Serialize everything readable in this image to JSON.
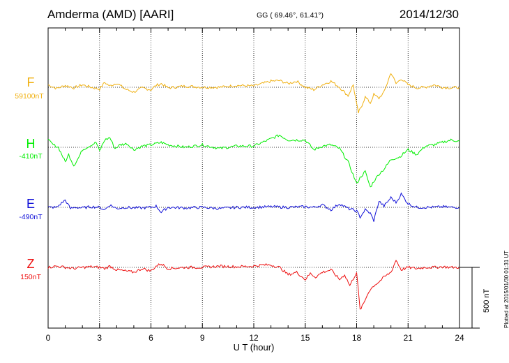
{
  "header": {
    "station": "Amderma (AMD)  [AARI]",
    "coords": "GG ( 69.46°,  61.41°)",
    "date": "2014/12/30"
  },
  "footer": {
    "plotted": "Plotted at 2015/01/30 01:31  UT"
  },
  "colors": {
    "F": "#f0b010",
    "H": "#00ee00",
    "E": "#1010d8",
    "Z": "#ee1010"
  },
  "chart_data": {
    "type": "line",
    "title": "",
    "xlabel": "U T (hour)",
    "ylabel": "",
    "xlim": [
      0,
      24
    ],
    "xticks": [
      "0",
      "3",
      "6",
      "9",
      "12",
      "15",
      "18",
      "21",
      "24"
    ],
    "grid": "dotted vertical every 3 hours; dotted baseline per component",
    "scale_bar": "500 nT",
    "series": [
      {
        "name": "F",
        "baseline_label": "59100nT",
        "x": [
          0,
          0.5,
          1,
          1.5,
          2,
          2.5,
          3,
          3.3,
          3.6,
          4,
          4.5,
          5,
          5.5,
          6,
          6.3,
          6.6,
          7,
          8,
          9,
          10,
          11,
          12,
          13,
          13.5,
          14,
          14.5,
          15,
          15.5,
          16,
          16.5,
          17,
          17.5,
          17.8,
          18,
          18.1,
          18.2,
          18.3,
          18.5,
          18.8,
          19,
          19.3,
          19.6,
          19.8,
          20,
          20.3,
          20.6,
          21,
          21.5,
          22,
          22.5,
          23,
          23.5,
          24
        ],
        "values": [
          20,
          -10,
          15,
          -5,
          20,
          0,
          -15,
          40,
          10,
          35,
          -15,
          -40,
          -5,
          -20,
          15,
          30,
          -5,
          10,
          0,
          0,
          15,
          10,
          50,
          55,
          30,
          50,
          0,
          -20,
          20,
          50,
          0,
          -70,
          20,
          -140,
          -210,
          -180,
          -150,
          -80,
          -130,
          -60,
          -90,
          -40,
          40,
          120,
          30,
          70,
          20,
          -5,
          0,
          20,
          0,
          -5,
          0
        ]
      },
      {
        "name": "H",
        "baseline_label": "-410nT",
        "x": [
          0,
          0.3,
          0.6,
          1,
          1.2,
          1.5,
          1.8,
          2,
          2.4,
          2.8,
          3,
          3.3,
          3.6,
          3.9,
          4.2,
          4.6,
          5,
          5.5,
          6,
          6.3,
          6.6,
          7,
          8,
          9,
          10,
          11,
          12,
          13,
          13.5,
          14,
          15,
          15.5,
          16,
          16.5,
          17,
          17.5,
          18,
          18.2,
          18.5,
          18.8,
          19,
          19.3,
          19.6,
          20,
          20.5,
          21,
          21.5,
          22,
          22.5,
          23,
          23.5,
          24
        ],
        "values": [
          60,
          20,
          0,
          -120,
          -60,
          -150,
          -80,
          -20,
          10,
          40,
          -30,
          60,
          80,
          -10,
          20,
          30,
          -20,
          10,
          20,
          30,
          40,
          20,
          0,
          20,
          -10,
          10,
          10,
          70,
          100,
          60,
          60,
          -20,
          10,
          20,
          -10,
          -120,
          -300,
          -250,
          -200,
          -330,
          -280,
          -220,
          -180,
          -100,
          -80,
          -20,
          -60,
          10,
          20,
          40,
          60,
          50
        ]
      },
      {
        "name": "E",
        "baseline_label": "-490nT",
        "x": [
          0,
          0.5,
          1,
          1.3,
          1.6,
          2,
          2.5,
          3,
          3.3,
          3.6,
          4,
          4.5,
          5,
          5.5,
          6,
          6.3,
          6.6,
          7,
          8,
          9,
          10,
          11,
          12,
          13,
          14,
          15,
          15.5,
          16,
          16.5,
          17,
          17.5,
          18,
          18.2,
          18.5,
          18.8,
          19,
          19.3,
          19.6,
          20,
          20.3,
          20.6,
          21,
          21.5,
          22,
          22.5,
          23,
          23.5,
          24
        ],
        "values": [
          0,
          0,
          60,
          -10,
          0,
          -5,
          5,
          0,
          -20,
          20,
          -10,
          0,
          -5,
          -5,
          0,
          10,
          -40,
          0,
          -5,
          0,
          -10,
          0,
          0,
          5,
          0,
          5,
          0,
          20,
          -20,
          30,
          -10,
          -30,
          -80,
          -20,
          -50,
          -110,
          50,
          10,
          80,
          40,
          110,
          30,
          0,
          0,
          0,
          5,
          0,
          0
        ]
      },
      {
        "name": "Z",
        "baseline_label": "150nT",
        "x": [
          0,
          0.5,
          1,
          1.5,
          2,
          2.5,
          3,
          3.3,
          3.6,
          4,
          4.5,
          5,
          5.5,
          6,
          6.3,
          6.6,
          7,
          8,
          9,
          10,
          11,
          12,
          12.5,
          13,
          13.5,
          14,
          14.5,
          15,
          15.3,
          15.6,
          16,
          16.5,
          17,
          17.3,
          17.6,
          18,
          18.2,
          18.4,
          18.7,
          19,
          19.3,
          19.6,
          20,
          20.3,
          20.6,
          21,
          21.5,
          22,
          22.5,
          23,
          23.5,
          24
        ],
        "values": [
          0,
          10,
          0,
          -10,
          0,
          5,
          0,
          -10,
          10,
          -20,
          -30,
          -40,
          -10,
          -30,
          10,
          30,
          -10,
          0,
          0,
          10,
          5,
          10,
          20,
          20,
          0,
          -60,
          -40,
          -100,
          -50,
          -80,
          -40,
          -20,
          -100,
          -60,
          -150,
          -40,
          -350,
          -300,
          -200,
          -150,
          -120,
          -80,
          -40,
          60,
          -20,
          0,
          -10,
          0,
          0,
          5,
          0,
          0
        ]
      }
    ]
  }
}
